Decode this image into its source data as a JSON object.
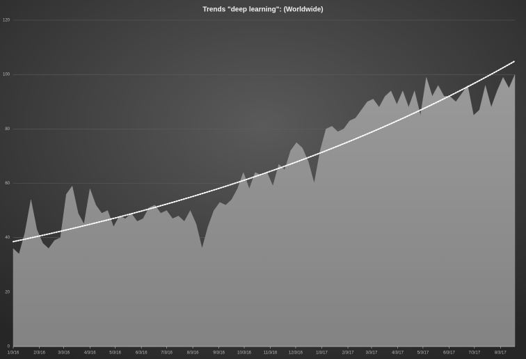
{
  "chart_data": {
    "type": "area",
    "title": "Trends \"deep learning\": (Worldwide)",
    "x": [
      "2016-01-03",
      "2016-01-10",
      "2016-01-17",
      "2016-01-24",
      "2016-01-31",
      "2016-02-07",
      "2016-02-14",
      "2016-02-21",
      "2016-02-28",
      "2016-03-06",
      "2016-03-13",
      "2016-03-20",
      "2016-03-27",
      "2016-04-03",
      "2016-04-10",
      "2016-04-17",
      "2016-04-24",
      "2016-05-01",
      "2016-05-08",
      "2016-05-15",
      "2016-05-22",
      "2016-05-29",
      "2016-06-05",
      "2016-06-12",
      "2016-06-19",
      "2016-06-26",
      "2016-07-03",
      "2016-07-10",
      "2016-07-17",
      "2016-07-24",
      "2016-07-31",
      "2016-08-07",
      "2016-08-14",
      "2016-08-21",
      "2016-08-28",
      "2016-09-04",
      "2016-09-11",
      "2016-09-18",
      "2016-09-25",
      "2016-10-02",
      "2016-10-09",
      "2016-10-16",
      "2016-10-23",
      "2016-10-30",
      "2016-11-06",
      "2016-11-13",
      "2016-11-20",
      "2016-11-27",
      "2016-12-04",
      "2016-12-11",
      "2016-12-18",
      "2016-12-25",
      "2017-01-01",
      "2017-01-08",
      "2017-01-15",
      "2017-01-22",
      "2017-01-29",
      "2017-02-05",
      "2017-02-12",
      "2017-02-19",
      "2017-02-26",
      "2017-03-05",
      "2017-03-12",
      "2017-03-19",
      "2017-03-26",
      "2017-04-02",
      "2017-04-09",
      "2017-04-16",
      "2017-04-23",
      "2017-04-30",
      "2017-05-07",
      "2017-05-14",
      "2017-05-21",
      "2017-05-28",
      "2017-06-04",
      "2017-06-11",
      "2017-06-18",
      "2017-06-25",
      "2017-07-02",
      "2017-07-09",
      "2017-07-16",
      "2017-07-23",
      "2017-07-30",
      "2017-08-06",
      "2017-08-13",
      "2017-08-20"
    ],
    "series": [
      {
        "name": "deep learning",
        "color": "#8e8e8e",
        "values": [
          36,
          34,
          42,
          54,
          43,
          38,
          36,
          39,
          40,
          56,
          59,
          49,
          45,
          58,
          52,
          49,
          50,
          44,
          48,
          47,
          49,
          46,
          47,
          51,
          52,
          49,
          50,
          47,
          48,
          46,
          50,
          45,
          36,
          44,
          50,
          53,
          52,
          54,
          58,
          64,
          58,
          64,
          63,
          64,
          59,
          67,
          65,
          72,
          75,
          73,
          68,
          60,
          72,
          80,
          81,
          79,
          80,
          83,
          84,
          87,
          90,
          91,
          88,
          92,
          94,
          89,
          94,
          88,
          94,
          85,
          99,
          92,
          96,
          92,
          92,
          90,
          93,
          96,
          85,
          87,
          96,
          88,
          94,
          99,
          95,
          100
        ]
      }
    ],
    "trendline": "exponential",
    "xlim": [
      "2016-01-03",
      "2017-08-20"
    ],
    "xticks": [
      {
        "value": "2016-01-03",
        "label": "1/3/16"
      },
      {
        "value": "2016-02-03",
        "label": "2/3/16"
      },
      {
        "value": "2016-03-03",
        "label": "3/3/16"
      },
      {
        "value": "2016-04-03",
        "label": "4/3/16"
      },
      {
        "value": "2016-05-03",
        "label": "5/3/16"
      },
      {
        "value": "2016-06-03",
        "label": "6/3/16"
      },
      {
        "value": "2016-07-03",
        "label": "7/3/16"
      },
      {
        "value": "2016-08-03",
        "label": "8/3/16"
      },
      {
        "value": "2016-09-03",
        "label": "9/3/16"
      },
      {
        "value": "2016-10-03",
        "label": "10/3/16"
      },
      {
        "value": "2016-11-03",
        "label": "11/3/16"
      },
      {
        "value": "2016-12-03",
        "label": "12/3/16"
      },
      {
        "value": "2017-01-03",
        "label": "1/3/17"
      },
      {
        "value": "2017-02-03",
        "label": "2/3/17"
      },
      {
        "value": "2017-03-03",
        "label": "3/3/17"
      },
      {
        "value": "2017-04-03",
        "label": "4/3/17"
      },
      {
        "value": "2017-05-03",
        "label": "5/3/17"
      },
      {
        "value": "2017-06-03",
        "label": "6/3/17"
      },
      {
        "value": "2017-07-03",
        "label": "7/3/17"
      },
      {
        "value": "2017-08-03",
        "label": "8/3/17"
      }
    ],
    "ylim": [
      0,
      120
    ],
    "yticks": [
      0,
      20,
      40,
      60,
      80,
      100,
      120
    ],
    "grid": true
  }
}
